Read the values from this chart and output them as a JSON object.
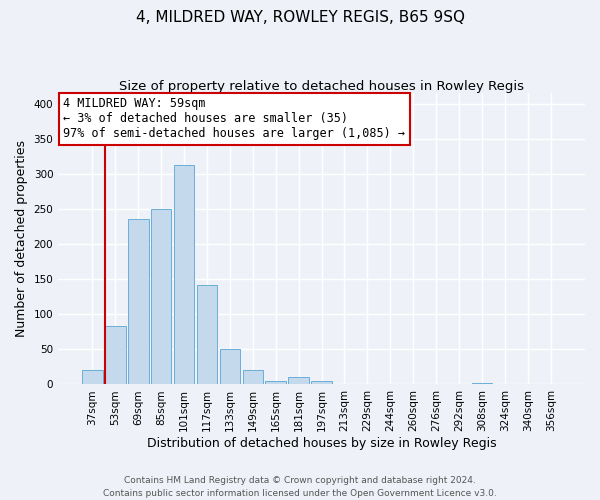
{
  "title": "4, MILDRED WAY, ROWLEY REGIS, B65 9SQ",
  "subtitle": "Size of property relative to detached houses in Rowley Regis",
  "xlabel": "Distribution of detached houses by size in Rowley Regis",
  "ylabel": "Number of detached properties",
  "bar_labels": [
    "37sqm",
    "53sqm",
    "69sqm",
    "85sqm",
    "101sqm",
    "117sqm",
    "133sqm",
    "149sqm",
    "165sqm",
    "181sqm",
    "197sqm",
    "213sqm",
    "229sqm",
    "244sqm",
    "260sqm",
    "276sqm",
    "292sqm",
    "308sqm",
    "324sqm",
    "340sqm",
    "356sqm"
  ],
  "bar_heights": [
    20,
    83,
    235,
    250,
    313,
    142,
    50,
    21,
    5,
    11,
    5,
    0,
    1,
    0,
    0,
    0,
    0,
    2,
    0,
    0,
    0
  ],
  "bar_color": "#c5d9ed",
  "bar_edge_color": "#6aaed6",
  "property_line_color": "#cc0000",
  "ylim": [
    0,
    415
  ],
  "yticks": [
    0,
    50,
    100,
    150,
    200,
    250,
    300,
    350,
    400
  ],
  "annotation_title": "4 MILDRED WAY: 59sqm",
  "annotation_line1": "← 3% of detached houses are smaller (35)",
  "annotation_line2": "97% of semi-detached houses are larger (1,085) →",
  "annotation_box_color": "#ffffff",
  "annotation_box_edge": "#cc0000",
  "footer_line1": "Contains HM Land Registry data © Crown copyright and database right 2024.",
  "footer_line2": "Contains public sector information licensed under the Open Government Licence v3.0.",
  "background_color": "#eef2f8",
  "grid_color": "#ffffff",
  "title_fontsize": 11,
  "subtitle_fontsize": 9.5,
  "axis_label_fontsize": 9,
  "tick_fontsize": 7.5,
  "annotation_fontsize": 8.5,
  "footer_fontsize": 6.5
}
